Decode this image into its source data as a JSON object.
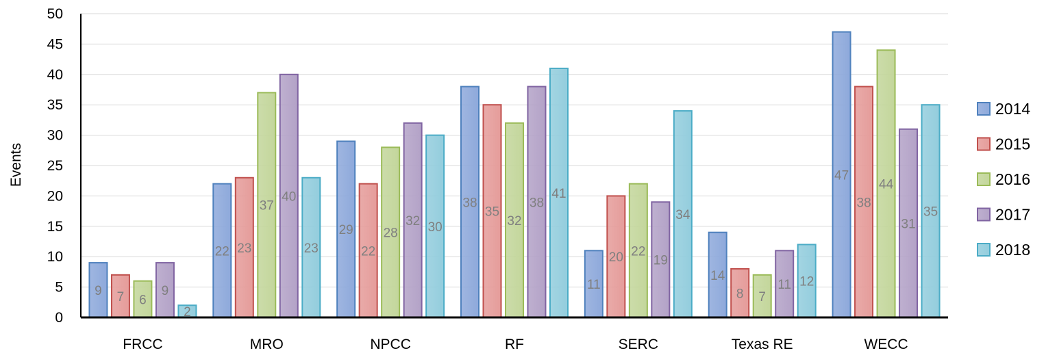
{
  "chart_data": {
    "type": "bar",
    "title": "",
    "xlabel": "",
    "ylabel": "Events",
    "ylim": [
      0,
      50
    ],
    "yticks": [
      0,
      5,
      10,
      15,
      20,
      25,
      30,
      35,
      40,
      45,
      50
    ],
    "grid": true,
    "legend_position": "right",
    "categories": [
      "FRCC",
      "MRO",
      "NPCC",
      "RF",
      "SERC",
      "Texas RE",
      "WECC"
    ],
    "series": [
      {
        "name": "2014",
        "color": "#8ea9db",
        "values": [
          9,
          22,
          29,
          38,
          11,
          14,
          47
        ]
      },
      {
        "name": "2015",
        "color": "#e59c9a",
        "values": [
          7,
          23,
          22,
          35,
          20,
          8,
          38
        ]
      },
      {
        "name": "2016",
        "color": "#c3d69b",
        "values": [
          6,
          37,
          28,
          32,
          22,
          7,
          44
        ]
      },
      {
        "name": "2017",
        "color": "#b3a2c7",
        "values": [
          9,
          40,
          32,
          38,
          19,
          11,
          31
        ]
      },
      {
        "name": "2018",
        "color": "#93cddd",
        "values": [
          2,
          23,
          30,
          41,
          34,
          12,
          35
        ]
      }
    ],
    "edge_colors": [
      "#4f81bd",
      "#c0504d",
      "#9bbb59",
      "#8064a2",
      "#4bacc6"
    ]
  }
}
